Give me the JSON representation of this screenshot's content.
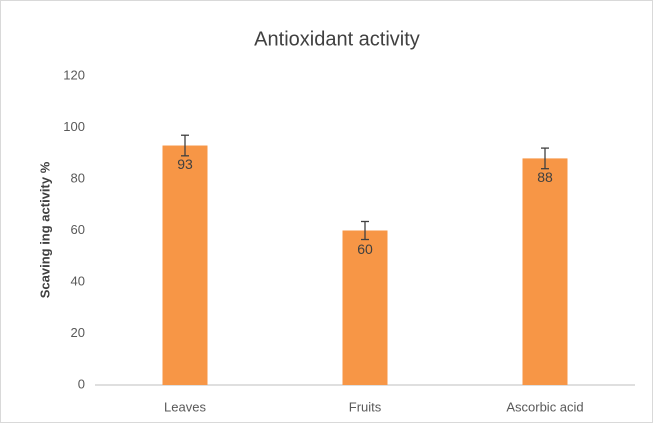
{
  "chart_data": {
    "type": "bar",
    "title": "Antioxidant activity",
    "y_label": "Scaving ing  activity %",
    "categories": [
      "Leaves",
      "Fruits",
      "Ascorbic acid"
    ],
    "values": [
      93,
      60,
      88
    ],
    "errors": [
      4,
      3.5,
      4
    ],
    "color": "#f79646",
    "ylim": [
      0,
      120
    ],
    "yticks": [
      0,
      20,
      40,
      60,
      80,
      100,
      120
    ],
    "grid": false
  }
}
